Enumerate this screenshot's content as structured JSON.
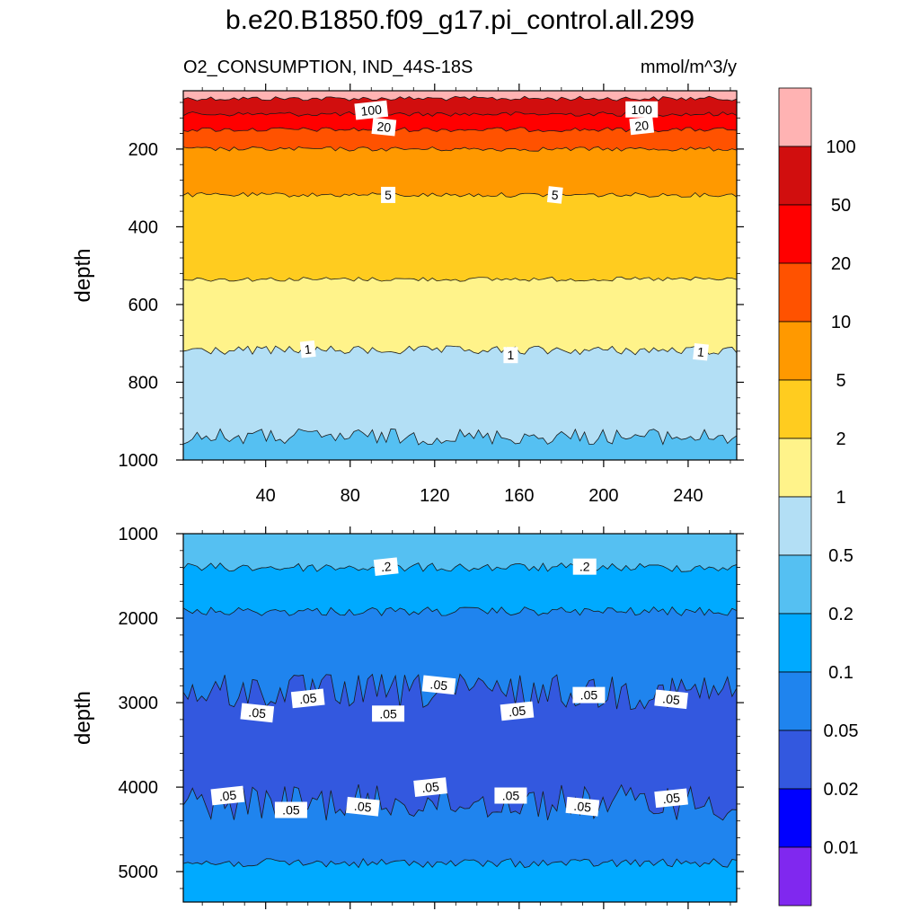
{
  "chart_data": [
    {
      "type": "contour",
      "title": "b.e20.B1850.f09_g17.pi_control.all.299",
      "subtitle_left": "O2_CONSUMPTION, IND_44S-18S",
      "subtitle_right": "mmol/m^3/y",
      "ylabel": "depth",
      "xlabel": "",
      "xlim": [
        1,
        263
      ],
      "ylim": [
        1000,
        50
      ],
      "x_ticks": [
        40,
        80,
        120,
        160,
        200,
        240
      ],
      "y_ticks": [
        200,
        400,
        600,
        800,
        1000
      ],
      "bands": [
        {
          "from": 50,
          "to": 70,
          "level": ">100"
        },
        {
          "from": 70,
          "to": 110,
          "level": "50-100"
        },
        {
          "from": 110,
          "to": 150,
          "level": "20-50"
        },
        {
          "from": 150,
          "to": 200,
          "level": "10-20"
        },
        {
          "from": 200,
          "to": 318,
          "level": "5-10"
        },
        {
          "from": 318,
          "to": 535,
          "level": "2-5"
        },
        {
          "from": 535,
          "to": 718,
          "level": "1-2"
        },
        {
          "from": 718,
          "to": 940,
          "level": "0.5-1"
        },
        {
          "from": 940,
          "to": 1000,
          "level": "0.2-0.5"
        }
      ],
      "contour_labels": [
        {
          "text": "100",
          "x": 90,
          "y": 100
        },
        {
          "text": "100",
          "x": 218,
          "y": 98
        },
        {
          "text": "20",
          "x": 96,
          "y": 143
        },
        {
          "text": "20",
          "x": 218,
          "y": 140
        },
        {
          "text": "5",
          "x": 98,
          "y": 318
        },
        {
          "text": "5",
          "x": 177,
          "y": 318
        },
        {
          "text": "1",
          "x": 60,
          "y": 715
        },
        {
          "text": "1",
          "x": 156,
          "y": 730
        },
        {
          "text": "1",
          "x": 246,
          "y": 722
        }
      ]
    },
    {
      "type": "contour",
      "ylabel": "depth",
      "xlabel": "",
      "xlim": [
        1,
        263
      ],
      "ylim": [
        5360,
        1000
      ],
      "y_ticks": [
        1000,
        2000,
        3000,
        4000,
        5000
      ],
      "bands": [
        {
          "from": 1000,
          "to": 1400,
          "level": "0.2-0.5"
        },
        {
          "from": 1400,
          "to": 1920,
          "level": "0.1-0.2"
        },
        {
          "from": 1920,
          "to": 2870,
          "level": "0.05-0.1"
        },
        {
          "from": 2870,
          "to": 4180,
          "level": "0.02-0.05"
        },
        {
          "from": 4180,
          "to": 4900,
          "level": "0.05-0.1"
        },
        {
          "from": 4900,
          "to": 5360,
          "level": "0.1-0.2"
        }
      ],
      "contour_labels": [
        {
          "text": ".2",
          "x": 97,
          "y": 1390
        },
        {
          "text": ".2",
          "x": 191,
          "y": 1390
        },
        {
          "text": ".05",
          "x": 36,
          "y": 3120
        },
        {
          "text": ".05",
          "x": 60,
          "y": 2950
        },
        {
          "text": ".05",
          "x": 98,
          "y": 3130
        },
        {
          "text": ".05",
          "x": 122,
          "y": 2790
        },
        {
          "text": ".05",
          "x": 159,
          "y": 3100
        },
        {
          "text": ".05",
          "x": 193,
          "y": 2910
        },
        {
          "text": ".05",
          "x": 232,
          "y": 2960
        },
        {
          "text": ".05",
          "x": 22,
          "y": 4100
        },
        {
          "text": ".05",
          "x": 52,
          "y": 4270
        },
        {
          "text": ".05",
          "x": 86,
          "y": 4230
        },
        {
          "text": ".05",
          "x": 118,
          "y": 4000
        },
        {
          "text": ".05",
          "x": 156,
          "y": 4100
        },
        {
          "text": ".05",
          "x": 190,
          "y": 4230
        },
        {
          "text": ".05",
          "x": 232,
          "y": 4130
        }
      ]
    }
  ],
  "colorbar": {
    "colors": [
      "#ffb3b3",
      "#d10e0e",
      "#ff0000",
      "#ff5200",
      "#ff9900",
      "#ffcc1f",
      "#fff38a",
      "#b3dff5",
      "#55c0f2",
      "#00aaff",
      "#1f84ee",
      "#3358df",
      "#0000ff",
      "#8028ef"
    ],
    "labels": [
      "100",
      "50",
      "20",
      "10",
      "5",
      "2",
      "1",
      "0.5",
      "0.2",
      "0.1",
      "0.05",
      "0.02",
      "0.01"
    ]
  }
}
